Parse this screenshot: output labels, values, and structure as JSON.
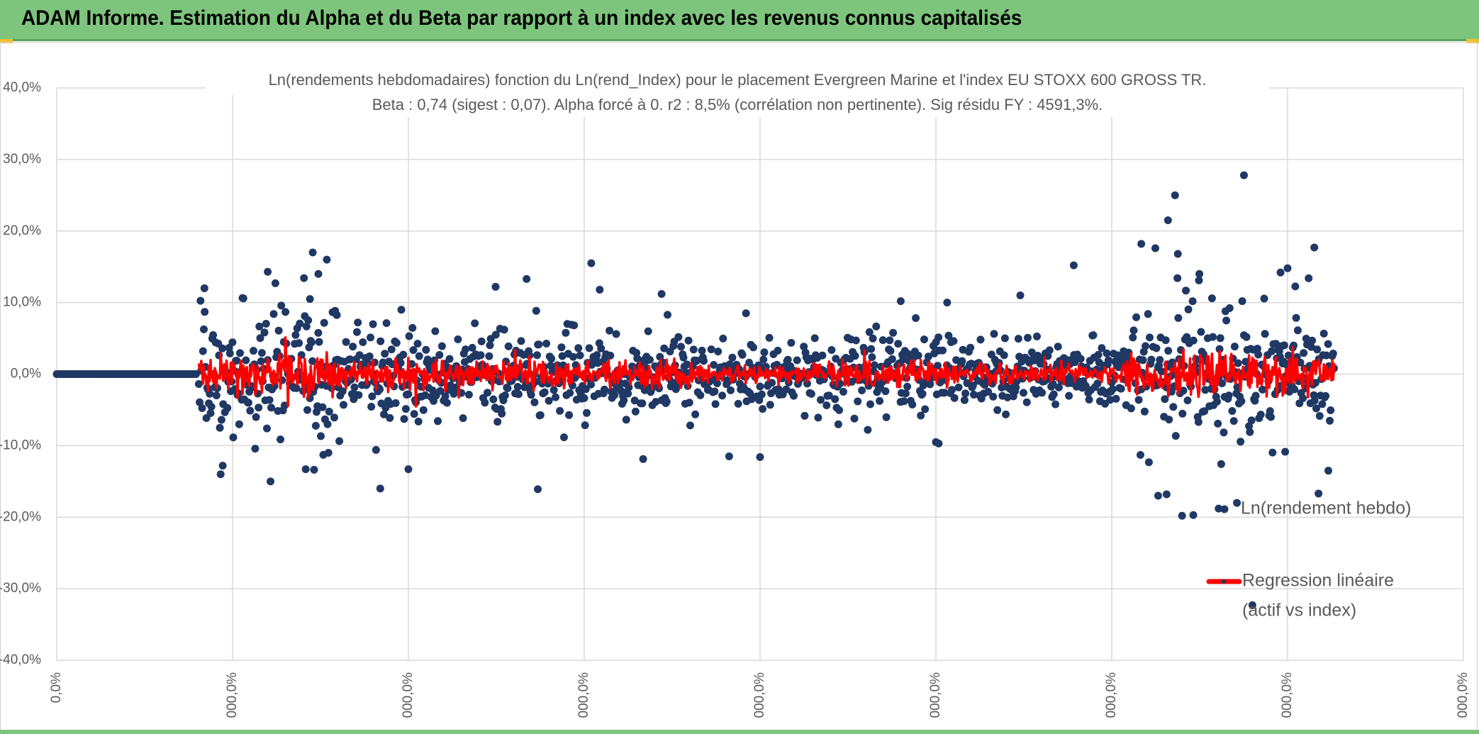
{
  "header": {
    "title": "ADAM Informe. Estimation du Alpha et du Beta par rapport à un index avec les revenus connus capitalisés"
  },
  "colors": {
    "banner": "#7dc57c",
    "scatter": "#1f3864",
    "regression": "#ff0000",
    "grid": "#d9d9d9",
    "text": "#595959"
  },
  "chart_data": {
    "type": "scatter",
    "title_line1": "Ln(rendements hebdomadaires) fonction du Ln(rend_Index) pour le placement Evergreen Marine  et l'index EU STOXX 600 GROSS TR.",
    "title_line2": "Beta : 0,74 (sigest : 0,07). Alpha forcé à 0. r2 : 8,5% (corrélation non pertinente). Sig résidu FY : 4591,3%.",
    "ylim": [
      -40,
      40
    ],
    "y_ticks": [
      40,
      30,
      20,
      10,
      0,
      -10,
      -20,
      -30,
      -40
    ],
    "y_tick_labels": [
      "40,0%",
      "30,0%",
      "20,0%",
      "10,0%",
      "0,0%",
      "-10,0%",
      "-20,0%",
      "-30,0%",
      "-40,0%"
    ],
    "x_tick_labels": [
      "0,0%",
      "000,0%",
      "000,0%",
      "000,0%",
      "000,0%",
      "000,0%",
      "000,0%",
      "000,0%",
      "000,0%"
    ],
    "series": [
      {
        "name": "Ln(rendement hebdo)",
        "kind": "scatter"
      },
      {
        "name": "Regression linéaire",
        "name_line2": "(actif vs index)",
        "kind": "line"
      }
    ],
    "outliers": [
      [
        0.105,
        12.0
      ],
      [
        0.118,
        -12.8
      ],
      [
        0.15,
        14.3
      ],
      [
        0.152,
        -15.0
      ],
      [
        0.18,
        10.5
      ],
      [
        0.177,
        -13.3
      ],
      [
        0.182,
        17.0
      ],
      [
        0.186,
        14.0
      ],
      [
        0.192,
        16.0
      ],
      [
        0.227,
        -10.6
      ],
      [
        0.23,
        -16.0
      ],
      [
        0.245,
        9.0
      ],
      [
        0.25,
        -13.3
      ],
      [
        0.312,
        12.2
      ],
      [
        0.334,
        13.3
      ],
      [
        0.342,
        -16.1
      ],
      [
        0.38,
        15.5
      ],
      [
        0.386,
        11.8
      ],
      [
        0.43,
        11.2
      ],
      [
        0.478,
        -11.5
      ],
      [
        0.49,
        8.5
      ],
      [
        0.5,
        -11.6
      ],
      [
        0.6,
        10.2
      ],
      [
        0.625,
        -9.5
      ],
      [
        0.627,
        -9.7
      ],
      [
        0.633,
        10.0
      ],
      [
        0.685,
        11.0
      ],
      [
        0.723,
        15.2
      ],
      [
        0.771,
        18.2
      ],
      [
        0.781,
        17.6
      ],
      [
        0.789,
        -16.8
      ],
      [
        0.79,
        21.5
      ],
      [
        0.795,
        25.0
      ],
      [
        0.797,
        16.8
      ],
      [
        0.8,
        -19.8
      ],
      [
        0.808,
        -19.7
      ],
      [
        0.812,
        13.1
      ],
      [
        0.826,
        -18.8
      ],
      [
        0.844,
        27.8
      ],
      [
        0.85,
        -32.3
      ],
      [
        0.87,
        14.2
      ],
      [
        0.875,
        14.8
      ],
      [
        0.89,
        13.4
      ],
      [
        0.894,
        17.7
      ],
      [
        0.897,
        -16.7
      ],
      [
        0.839,
        -18.0
      ],
      [
        0.783,
        -17.0
      ],
      [
        0.904,
        -13.5
      ]
    ]
  },
  "chart_meta": {
    "n_points": 1350,
    "seed": 7
  }
}
